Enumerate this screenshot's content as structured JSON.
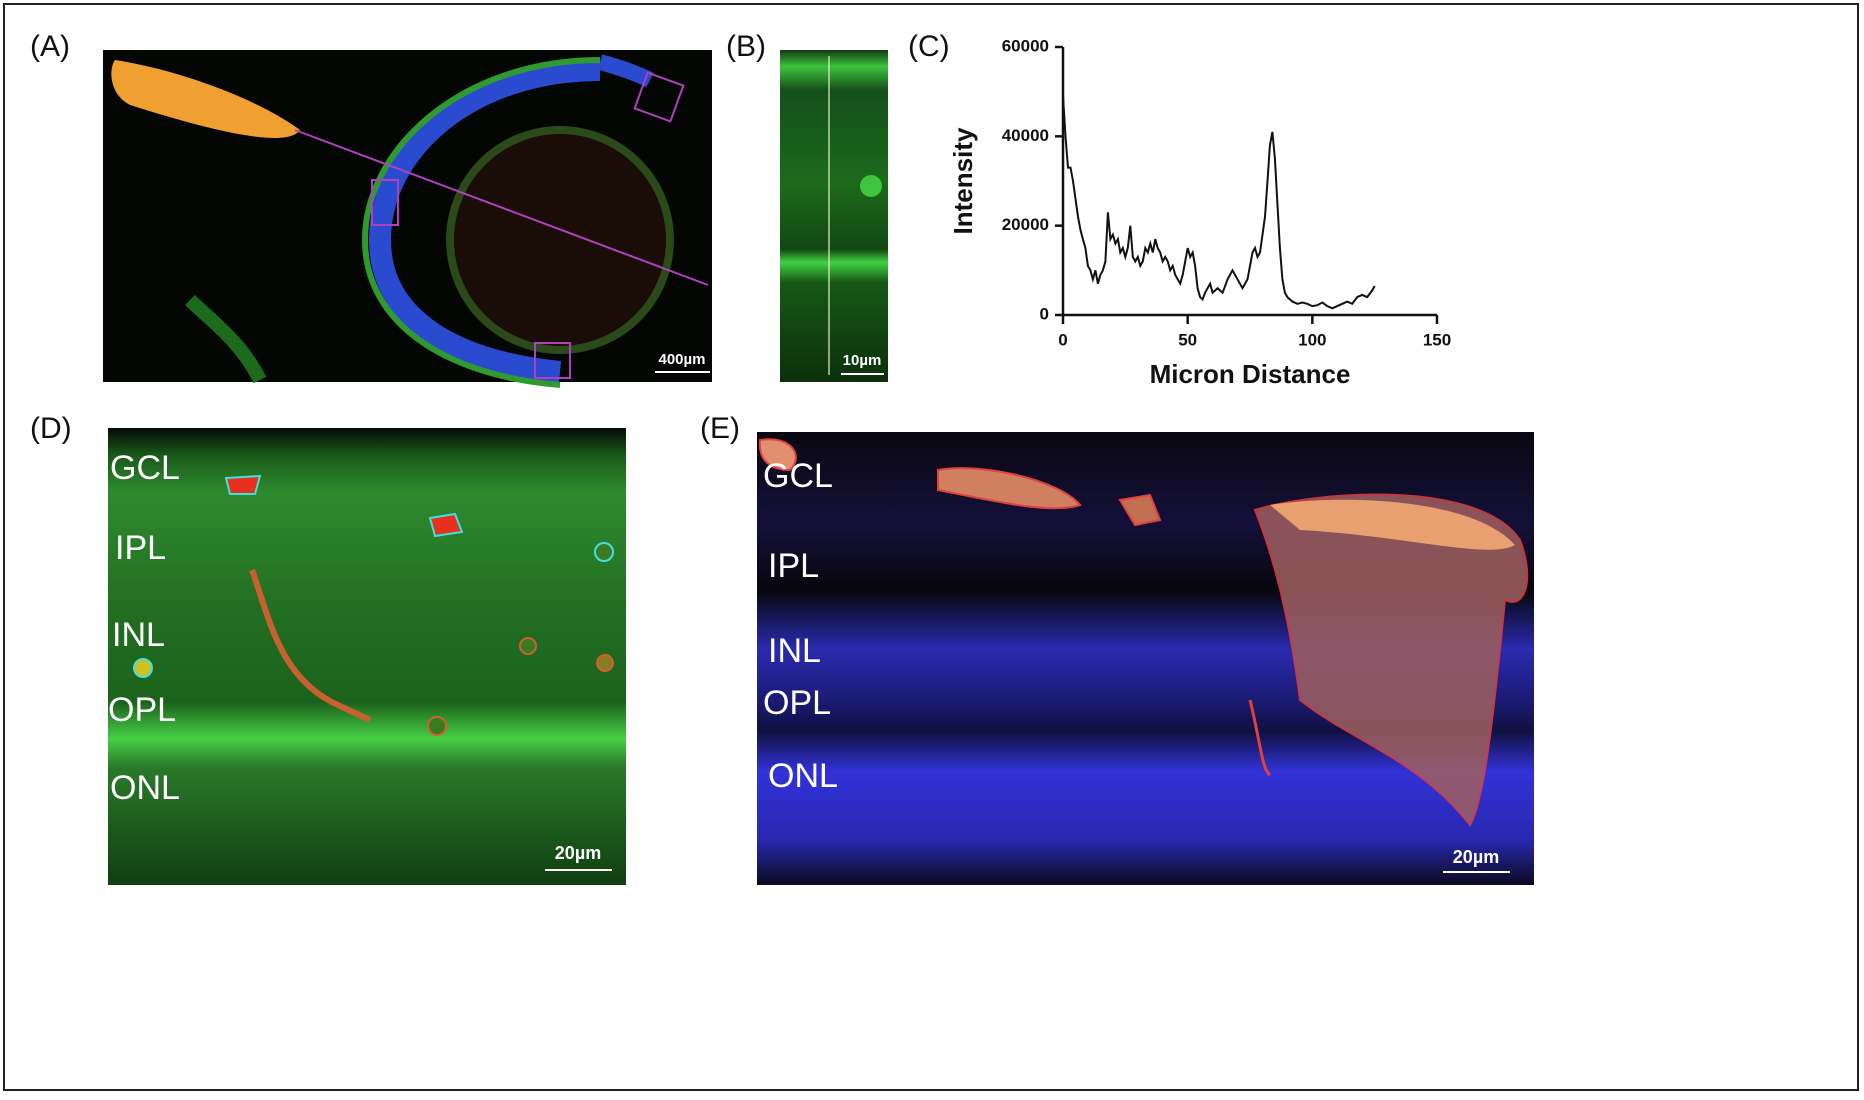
{
  "panels": {
    "a": {
      "label": "(A)",
      "scale_bar": "400µm"
    },
    "b": {
      "label": "(B)",
      "scale_bar": "10µm"
    },
    "c": {
      "label": "(C)"
    },
    "d": {
      "label": "(D)",
      "scale_bar": "20µm",
      "layers": [
        "GCL",
        "IPL",
        "INL",
        "OPL",
        "ONL"
      ]
    },
    "e": {
      "label": "(E)",
      "scale_bar": "20µm",
      "layers": [
        "GCL",
        "IPL",
        "INL",
        "OPL",
        "ONL"
      ]
    }
  },
  "chart_data": {
    "type": "line",
    "x_label": "Micron Distance",
    "y_label": "Intensity",
    "color": "#111111",
    "xlim": [
      0,
      150
    ],
    "xticks": [
      0,
      50,
      100,
      150
    ],
    "ylim": [
      0,
      60000
    ],
    "yticks": [
      0,
      20000,
      40000,
      60000
    ],
    "x": [
      0,
      1,
      2,
      3,
      4,
      5,
      6,
      7,
      8,
      9,
      10,
      11,
      12,
      13,
      14,
      15,
      16,
      17,
      18,
      19,
      20,
      21,
      22,
      23,
      24,
      25,
      26,
      27,
      28,
      29,
      30,
      31,
      32,
      33,
      34,
      35,
      36,
      37,
      38,
      39,
      40,
      41,
      42,
      43,
      44,
      45,
      46,
      47,
      48,
      49,
      50,
      51,
      52,
      53,
      54,
      55,
      56,
      57,
      58,
      59,
      60,
      62,
      64,
      66,
      68,
      70,
      72,
      74,
      76,
      77,
      78,
      79,
      80,
      81,
      82,
      83,
      84,
      85,
      86,
      87,
      88,
      89,
      90,
      92,
      94,
      96,
      98,
      100,
      102,
      104,
      106,
      108,
      110,
      112,
      114,
      116,
      118,
      120,
      122,
      124,
      125
    ],
    "values": [
      49000,
      40000,
      33000,
      33000,
      30000,
      26000,
      22000,
      19000,
      17000,
      15000,
      11000,
      10000,
      8000,
      10000,
      7000,
      9000,
      10000,
      12000,
      23000,
      17000,
      18000,
      16000,
      17000,
      14000,
      15000,
      13000,
      15000,
      20000,
      13000,
      12000,
      13000,
      11000,
      12000,
      15000,
      14000,
      16000,
      14000,
      17000,
      15000,
      14000,
      12000,
      13000,
      12000,
      10000,
      11000,
      9000,
      8000,
      7000,
      9000,
      12000,
      15000,
      13000,
      14000,
      11000,
      6000,
      4000,
      3500,
      5000,
      6000,
      7000,
      5000,
      6000,
      5000,
      8000,
      10000,
      8000,
      6000,
      8000,
      14000,
      15000,
      13000,
      14000,
      18000,
      22000,
      30000,
      38000,
      41000,
      35000,
      25000,
      15000,
      8000,
      5000,
      4000,
      3000,
      2500,
      2800,
      2500,
      2000,
      2200,
      2800,
      2000,
      1500,
      2000,
      2500,
      3000,
      2500,
      4000,
      4500,
      4000,
      5500,
      6500
    ]
  }
}
